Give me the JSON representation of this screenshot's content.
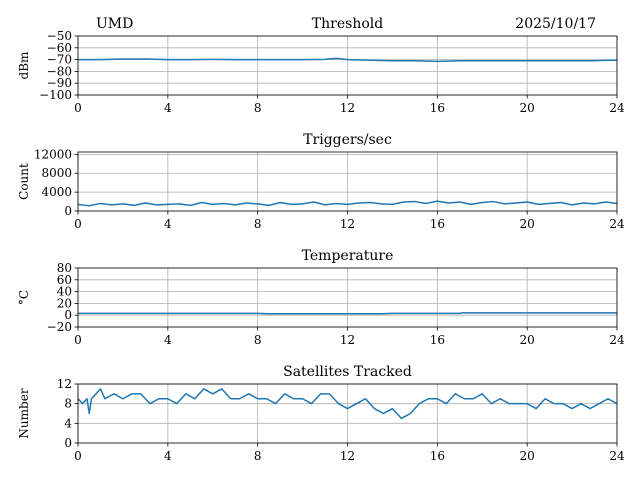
{
  "header": {
    "left": "UMD",
    "right": "2025/10/17"
  },
  "chart_data": [
    {
      "type": "line",
      "title": "Threshold",
      "ylabel": "dBm",
      "xlim": [
        0,
        24
      ],
      "ylim": [
        -100,
        -50
      ],
      "xticks": [
        "0",
        "4",
        "8",
        "12",
        "16",
        "20",
        "24"
      ],
      "yticks": [
        "−50",
        "−60",
        "−70",
        "−80",
        "−90",
        "−100"
      ],
      "grid": true,
      "series": [
        {
          "color": "#1f77b4",
          "x": [
            0,
            1,
            2,
            3,
            4,
            5,
            6,
            7,
            8,
            9,
            10,
            11,
            11.5,
            12,
            13,
            14,
            15,
            16,
            17,
            18,
            19,
            20,
            21,
            22,
            23,
            23.5,
            24
          ],
          "y": [
            -70,
            -70,
            -69.5,
            -69.5,
            -70,
            -70,
            -69.8,
            -70,
            -70,
            -70,
            -70,
            -69.8,
            -69,
            -70,
            -70.5,
            -71,
            -71,
            -71.5,
            -71,
            -71,
            -71,
            -71,
            -71,
            -71,
            -71,
            -70.5,
            -70.5
          ]
        }
      ]
    },
    {
      "type": "line",
      "title": "Triggers/sec",
      "ylabel": "Count",
      "xlim": [
        0,
        24
      ],
      "ylim": [
        0,
        12500
      ],
      "xticks": [
        "0",
        "4",
        "8",
        "12",
        "16",
        "20",
        "24"
      ],
      "yticks": [
        "0",
        "4000",
        "8000",
        "12000"
      ],
      "grid": true,
      "series": [
        {
          "color": "#1f77b4",
          "x": [
            0,
            0.5,
            1,
            1.5,
            2,
            2.5,
            3,
            3.5,
            4,
            4.5,
            5,
            5.5,
            6,
            6.5,
            7,
            7.5,
            8,
            8.5,
            9,
            9.5,
            10,
            10.5,
            11,
            11.5,
            12,
            12.5,
            13,
            13.5,
            14,
            14.5,
            15,
            15.5,
            16,
            16.5,
            17,
            17.5,
            18,
            18.5,
            19,
            19.5,
            20,
            20.5,
            21,
            21.5,
            22,
            22.5,
            23,
            23.5,
            24
          ],
          "y": [
            1400,
            1100,
            1600,
            1300,
            1500,
            1200,
            1700,
            1300,
            1400,
            1500,
            1200,
            1800,
            1400,
            1600,
            1300,
            1700,
            1500,
            1200,
            1800,
            1400,
            1500,
            1900,
            1300,
            1600,
            1400,
            1700,
            1800,
            1500,
            1400,
            1900,
            2000,
            1600,
            2100,
            1700,
            1900,
            1400,
            1800,
            2000,
            1500,
            1700,
            1900,
            1400,
            1600,
            1800,
            1300,
            1700,
            1500,
            1900,
            1600
          ]
        }
      ]
    },
    {
      "type": "line",
      "title": "Temperature",
      "ylabel": "°C",
      "xlim": [
        0,
        24
      ],
      "ylim": [
        -20,
        80
      ],
      "xticks": [
        "0",
        "4",
        "8",
        "12",
        "16",
        "20",
        "24"
      ],
      "yticks": [
        "−20",
        "0",
        "20",
        "40",
        "60",
        "80"
      ],
      "grid": true,
      "series": [
        {
          "color": "#1f77b4",
          "x": [
            0,
            2,
            4,
            6,
            8,
            8.5,
            10,
            12,
            13.5,
            14,
            16,
            17,
            17.1,
            18,
            20,
            22,
            24
          ],
          "y": [
            3,
            3,
            3,
            3,
            3,
            2.5,
            2.5,
            2.5,
            2.5,
            3,
            3,
            3,
            4,
            4,
            4,
            4,
            4
          ]
        }
      ]
    },
    {
      "type": "line",
      "title": "Satellites Tracked",
      "ylabel": "Number",
      "xlim": [
        0,
        24
      ],
      "ylim": [
        0,
        12
      ],
      "xticks": [
        "0",
        "4",
        "8",
        "12",
        "16",
        "20",
        "24"
      ],
      "yticks": [
        "0",
        "4",
        "8",
        "12"
      ],
      "grid": true,
      "series": [
        {
          "color": "#1f77b4",
          "x": [
            0,
            0.2,
            0.4,
            0.5,
            0.6,
            0.8,
            1.0,
            1.2,
            1.6,
            2.0,
            2.4,
            2.8,
            3.2,
            3.6,
            4.0,
            4.4,
            4.8,
            5.2,
            5.6,
            6.0,
            6.4,
            6.8,
            7.2,
            7.6,
            8.0,
            8.4,
            8.8,
            9.2,
            9.6,
            10.0,
            10.4,
            10.8,
            11.2,
            11.6,
            12.0,
            12.4,
            12.8,
            13.2,
            13.6,
            14.0,
            14.4,
            14.8,
            15.2,
            15.6,
            16.0,
            16.4,
            16.8,
            17.2,
            17.6,
            18.0,
            18.4,
            18.8,
            19.2,
            19.6,
            20.0,
            20.4,
            20.8,
            21.2,
            21.6,
            22.0,
            22.4,
            22.8,
            23.2,
            23.6,
            24.0
          ],
          "y": [
            9,
            8,
            9,
            6,
            9,
            10,
            11,
            9,
            10,
            9,
            10,
            10,
            8,
            9,
            9,
            8,
            10,
            9,
            11,
            10,
            11,
            9,
            9,
            10,
            9,
            9,
            8,
            10,
            9,
            9,
            8,
            10,
            10,
            8,
            7,
            8,
            9,
            7,
            6,
            7,
            5,
            6,
            8,
            9,
            9,
            8,
            10,
            9,
            9,
            10,
            8,
            9,
            8,
            8,
            8,
            7,
            9,
            8,
            8,
            7,
            8,
            7,
            8,
            9,
            8
          ]
        }
      ]
    }
  ]
}
